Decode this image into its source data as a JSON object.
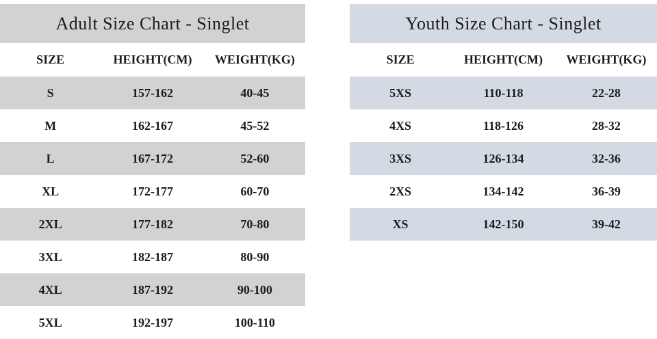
{
  "colors": {
    "page_bg": "#ffffff",
    "adult_band": "#d2d2d2",
    "youth_band": "#d3dae4",
    "text": "#1c1c1c"
  },
  "adult_table": {
    "title": "Adult Size Chart - Singlet",
    "columns": [
      "SIZE",
      "HEIGHT(CM)",
      "WEIGHT(KG)"
    ],
    "rows": [
      [
        "S",
        "157-162",
        "40-45"
      ],
      [
        "M",
        "162-167",
        "45-52"
      ],
      [
        "L",
        "167-172",
        "52-60"
      ],
      [
        "XL",
        "172-177",
        "60-70"
      ],
      [
        "2XL",
        "177-182",
        "70-80"
      ],
      [
        "3XL",
        "182-187",
        "80-90"
      ],
      [
        "4XL",
        "187-192",
        "90-100"
      ],
      [
        "5XL",
        "192-197",
        "100-110"
      ]
    ]
  },
  "youth_table": {
    "title": "Youth Size Chart - Singlet",
    "columns": [
      "SIZE",
      "HEIGHT(CM)",
      "WEIGHT(KG)"
    ],
    "rows": [
      [
        "5XS",
        "110-118",
        "22-28"
      ],
      [
        "4XS",
        "118-126",
        "28-32"
      ],
      [
        "3XS",
        "126-134",
        "32-36"
      ],
      [
        "2XS",
        "134-142",
        "36-39"
      ],
      [
        "XS",
        "142-150",
        "39-42"
      ]
    ]
  }
}
